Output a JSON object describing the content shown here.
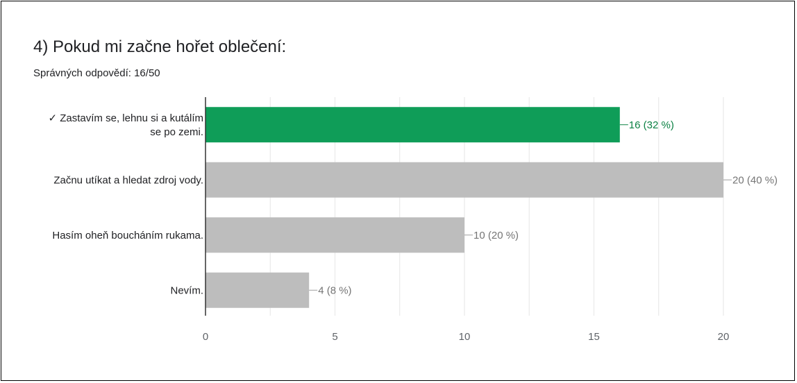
{
  "question": {
    "title": "4) Pokud mi začne hořet oblečení:",
    "correct_summary": "Správných odpovědí: 16/50"
  },
  "colors": {
    "correct": "#0f9d58",
    "other": "#bdbdbd",
    "correct_label": "#0b8043",
    "other_label": "#757575",
    "grid": "#e6e6e6",
    "axis": "#333333"
  },
  "chart_data": {
    "type": "bar",
    "orientation": "horizontal",
    "categories": [
      "✓ Zastavím se, lehnu si a kutálím se po zemi.",
      "Začnu utíkat a hledat zdroj vody.",
      "Hasím oheň boucháním rukama.",
      "Nevím."
    ],
    "category_label_lines": [
      [
        "✓ Zastavím se, lehnu si a kutálím",
        "se po zemi."
      ],
      [
        "Začnu utíkat a hledat zdroj vody."
      ],
      [
        "Hasím oheň boucháním rukama."
      ],
      [
        "Nevím."
      ]
    ],
    "values": [
      16,
      20,
      10,
      4
    ],
    "data_labels": [
      "16 (32 %)",
      "20 (40 %)",
      "10 (20 %)",
      "4 (8 %)"
    ],
    "correct": [
      true,
      false,
      false,
      false
    ],
    "xlim": [
      0,
      20
    ],
    "xticks": [
      0,
      5,
      10,
      15,
      20
    ],
    "grid": true
  }
}
